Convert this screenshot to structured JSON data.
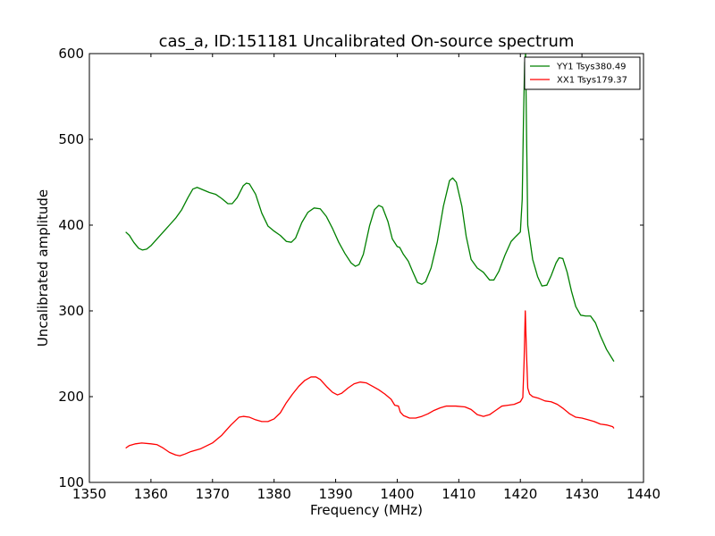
{
  "chart_data": {
    "type": "line",
    "title": "cas_a, ID:151181 Uncalibrated On-source spectrum",
    "xlabel": "Frequency (MHz)",
    "ylabel": "Uncalibrated amplitude",
    "xlim": [
      1350,
      1440
    ],
    "ylim": [
      100,
      600
    ],
    "xticks": [
      1350,
      1360,
      1370,
      1380,
      1390,
      1400,
      1410,
      1420,
      1430,
      1440
    ],
    "yticks": [
      100,
      200,
      300,
      400,
      500,
      600
    ],
    "legend_position": "top-right",
    "series": [
      {
        "name": "YY1 Tsys380.49",
        "color": "#008000",
        "points": [
          [
            1355.9,
            392
          ],
          [
            1356.5,
            388
          ],
          [
            1357.2,
            380
          ],
          [
            1358,
            373
          ],
          [
            1358.6,
            371
          ],
          [
            1359.3,
            372
          ],
          [
            1360,
            376
          ],
          [
            1361,
            384
          ],
          [
            1362,
            392
          ],
          [
            1363,
            400
          ],
          [
            1364,
            408
          ],
          [
            1365,
            418
          ],
          [
            1366,
            432
          ],
          [
            1366.8,
            442
          ],
          [
            1367.5,
            444
          ],
          [
            1368.5,
            441
          ],
          [
            1369.5,
            438
          ],
          [
            1370.5,
            436
          ],
          [
            1371.5,
            431
          ],
          [
            1372.5,
            425
          ],
          [
            1373.2,
            425
          ],
          [
            1374,
            432
          ],
          [
            1375,
            446
          ],
          [
            1375.5,
            449
          ],
          [
            1376,
            448
          ],
          [
            1377,
            436
          ],
          [
            1378,
            414
          ],
          [
            1379,
            399
          ],
          [
            1380,
            393
          ],
          [
            1381,
            388
          ],
          [
            1382,
            381
          ],
          [
            1382.8,
            380
          ],
          [
            1383.5,
            385
          ],
          [
            1384.5,
            403
          ],
          [
            1385.5,
            415
          ],
          [
            1386.5,
            420
          ],
          [
            1387.5,
            419
          ],
          [
            1388.5,
            410
          ],
          [
            1389.5,
            396
          ],
          [
            1390.5,
            380
          ],
          [
            1391.5,
            367
          ],
          [
            1392.5,
            356
          ],
          [
            1393.2,
            352
          ],
          [
            1393.8,
            354
          ],
          [
            1394.5,
            366
          ],
          [
            1395.5,
            399
          ],
          [
            1396.3,
            418
          ],
          [
            1397,
            423
          ],
          [
            1397.6,
            421
          ],
          [
            1398.5,
            404
          ],
          [
            1399.2,
            384
          ],
          [
            1400,
            375
          ],
          [
            1400.4,
            374
          ],
          [
            1401,
            366
          ],
          [
            1401.8,
            358
          ],
          [
            1402.5,
            346
          ],
          [
            1403.3,
            333
          ],
          [
            1404,
            331
          ],
          [
            1404.6,
            334
          ],
          [
            1405.5,
            350
          ],
          [
            1406.5,
            380
          ],
          [
            1407.5,
            422
          ],
          [
            1408.5,
            452
          ],
          [
            1409,
            455
          ],
          [
            1409.6,
            450
          ],
          [
            1410.5,
            422
          ],
          [
            1411.2,
            387
          ],
          [
            1412,
            360
          ],
          [
            1413,
            350
          ],
          [
            1414,
            345
          ],
          [
            1415,
            336
          ],
          [
            1415.7,
            336
          ],
          [
            1416.5,
            346
          ],
          [
            1417.5,
            365
          ],
          [
            1418.5,
            381
          ],
          [
            1419.3,
            387
          ],
          [
            1420,
            392
          ],
          [
            1420.3,
            430
          ],
          [
            1420.5,
            520
          ],
          [
            1420.7,
            590
          ],
          [
            1420.85,
            600
          ],
          [
            1421.0,
            510
          ],
          [
            1421.2,
            400
          ],
          [
            1421.5,
            385
          ],
          [
            1422,
            360
          ],
          [
            1422.8,
            340
          ],
          [
            1423.5,
            329
          ],
          [
            1424.3,
            330
          ],
          [
            1425,
            341
          ],
          [
            1425.8,
            356
          ],
          [
            1426.3,
            362
          ],
          [
            1426.9,
            361
          ],
          [
            1427.6,
            345
          ],
          [
            1428.3,
            323
          ],
          [
            1429,
            305
          ],
          [
            1429.8,
            295
          ],
          [
            1430.6,
            294
          ],
          [
            1431.4,
            294
          ],
          [
            1432.2,
            286
          ],
          [
            1433,
            271
          ],
          [
            1434,
            255
          ],
          [
            1435.2,
            241
          ]
        ]
      },
      {
        "name": "XX1 Tsys179.37",
        "color": "#ff0000",
        "points": [
          [
            1355.9,
            140
          ],
          [
            1356.5,
            143
          ],
          [
            1357.5,
            145
          ],
          [
            1358.5,
            146
          ],
          [
            1360,
            145
          ],
          [
            1361,
            144
          ],
          [
            1362,
            140
          ],
          [
            1363,
            135
          ],
          [
            1364,
            132
          ],
          [
            1364.7,
            131
          ],
          [
            1365.5,
            133
          ],
          [
            1366.5,
            136
          ],
          [
            1368,
            139
          ],
          [
            1370,
            146
          ],
          [
            1371.5,
            155
          ],
          [
            1373,
            167
          ],
          [
            1374.3,
            176
          ],
          [
            1375,
            177
          ],
          [
            1376,
            176
          ],
          [
            1377,
            173
          ],
          [
            1378,
            171
          ],
          [
            1379,
            171
          ],
          [
            1380,
            174
          ],
          [
            1381,
            181
          ],
          [
            1382,
            193
          ],
          [
            1383,
            203
          ],
          [
            1384,
            212
          ],
          [
            1385,
            219
          ],
          [
            1386,
            223
          ],
          [
            1386.8,
            223
          ],
          [
            1387.5,
            220
          ],
          [
            1388.5,
            212
          ],
          [
            1389.5,
            205
          ],
          [
            1390.3,
            202
          ],
          [
            1391,
            204
          ],
          [
            1392,
            210
          ],
          [
            1393,
            215
          ],
          [
            1394,
            217
          ],
          [
            1395,
            216
          ],
          [
            1396,
            212
          ],
          [
            1397,
            208
          ],
          [
            1398,
            203
          ],
          [
            1399,
            197
          ],
          [
            1399.6,
            190
          ],
          [
            1400.2,
            189
          ],
          [
            1400.5,
            182
          ],
          [
            1401,
            178
          ],
          [
            1402,
            175
          ],
          [
            1403,
            175
          ],
          [
            1404,
            177
          ],
          [
            1405,
            180
          ],
          [
            1406,
            184
          ],
          [
            1407,
            187
          ],
          [
            1408,
            189
          ],
          [
            1409.5,
            189
          ],
          [
            1411,
            188
          ],
          [
            1412,
            185
          ],
          [
            1413,
            179
          ],
          [
            1414,
            177
          ],
          [
            1415,
            179
          ],
          [
            1416,
            184
          ],
          [
            1417,
            189
          ],
          [
            1418,
            190
          ],
          [
            1419,
            191
          ],
          [
            1420,
            194
          ],
          [
            1420.4,
            199
          ],
          [
            1420.6,
            240
          ],
          [
            1420.8,
            300
          ],
          [
            1421.0,
            250
          ],
          [
            1421.2,
            210
          ],
          [
            1421.5,
            203
          ],
          [
            1422,
            200
          ],
          [
            1423,
            198
          ],
          [
            1424,
            195
          ],
          [
            1425,
            194
          ],
          [
            1426,
            191
          ],
          [
            1427,
            186
          ],
          [
            1428,
            180
          ],
          [
            1429,
            176
          ],
          [
            1430,
            175
          ],
          [
            1431,
            173
          ],
          [
            1432,
            171
          ],
          [
            1433,
            168
          ],
          [
            1434,
            167
          ],
          [
            1435,
            165
          ],
          [
            1435.2,
            163
          ]
        ]
      }
    ]
  }
}
